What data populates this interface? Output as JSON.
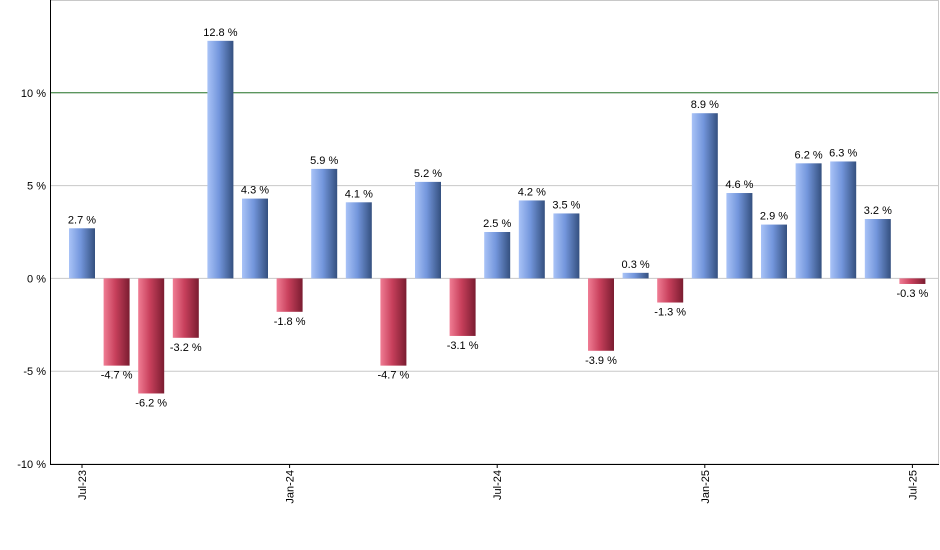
{
  "chart_data": {
    "type": "bar",
    "title": "",
    "xlabel": "",
    "ylabel": "",
    "ylim": [
      -10,
      15
    ],
    "y_ticks": [
      -10,
      -5,
      0,
      5,
      10
    ],
    "y_tick_labels": [
      "-10 %",
      "-5 %",
      "0 %",
      "5 %",
      "10 %"
    ],
    "x_ticks": [
      {
        "month": "2023-07",
        "label": "Jul-23"
      },
      {
        "month": "2024-01",
        "label": "Jan-24"
      },
      {
        "month": "2024-07",
        "label": "Jul-24"
      },
      {
        "month": "2025-01",
        "label": "Jan-25"
      },
      {
        "month": "2025-07",
        "label": "Jul-25"
      }
    ],
    "categories": [
      "2023-07",
      "2023-08",
      "2023-09",
      "2023-10",
      "2023-11",
      "2023-12",
      "2024-01",
      "2024-02",
      "2024-03",
      "2024-04",
      "2024-05",
      "2024-06",
      "2024-07",
      "2024-08",
      "2024-09",
      "2024-10",
      "2024-11",
      "2024-12",
      "2025-01",
      "2025-02",
      "2025-03",
      "2025-04",
      "2025-05",
      "2025-06",
      "2025-07"
    ],
    "values": [
      2.7,
      -4.7,
      -6.2,
      -3.2,
      12.8,
      4.3,
      -1.8,
      5.9,
      4.1,
      -4.7,
      5.2,
      -3.1,
      2.5,
      4.2,
      3.5,
      -3.9,
      0.3,
      -1.3,
      8.9,
      4.6,
      2.9,
      6.2,
      6.3,
      3.2,
      -0.3
    ],
    "value_labels": [
      "2.7 %",
      "-4.7 %",
      "-6.2 %",
      "-3.2 %",
      "12.8 %",
      "4.3 %",
      "-1.8 %",
      "5.9 %",
      "4.1 %",
      "-4.7 %",
      "5.2 %",
      "-3.1 %",
      "2.5 %",
      "4.2 %",
      "3.5 %",
      "-3.9 %",
      "0.3 %",
      "-1.3 %",
      "8.9 %",
      "4.6 %",
      "2.9 %",
      "6.2 %",
      "6.3 %",
      "3.2 %",
      "-0.3 %"
    ],
    "reference_line": {
      "value": 10,
      "color": "#2e7d32"
    },
    "grid": true,
    "colors": {
      "positive": [
        "#9bb6f2",
        "#3e5d94"
      ],
      "negative": [
        "#ec6f88",
        "#8e2439"
      ],
      "grid": "#c8c8c8",
      "axis": "#000000"
    }
  }
}
